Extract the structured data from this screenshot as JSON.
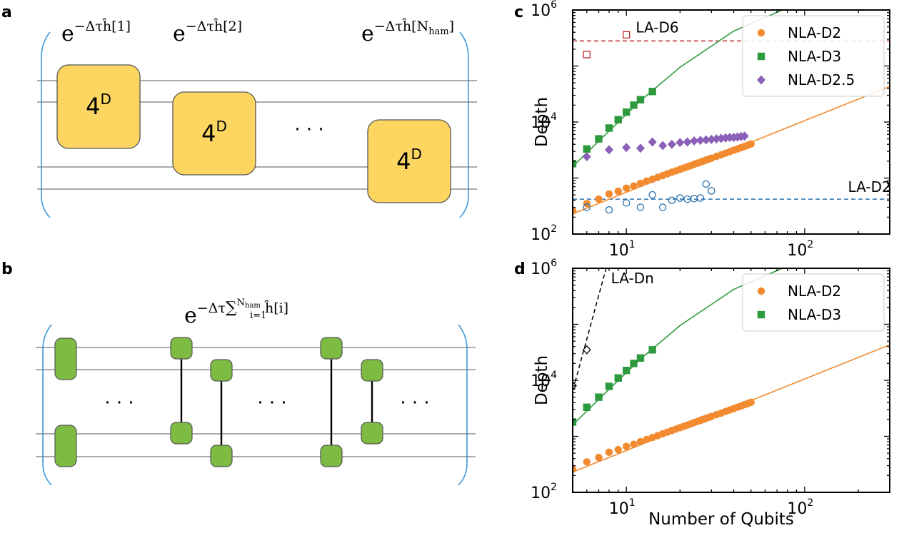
{
  "panels": {
    "a": {
      "letter": "a",
      "labels": [
        {
          "base": "e",
          "exp": "−Δτĥ[1]"
        },
        {
          "base": "e",
          "exp": "−Δτĥ[2]"
        },
        {
          "base": "e",
          "exp": "−Δτĥ[N",
          "sub": "ham",
          "close": "]"
        }
      ],
      "gate_label": "4",
      "gate_sup": "D",
      "ellipsis": "· · ·",
      "colors": {
        "gate_fill": "#fdd662",
        "gate_stroke": "#555555",
        "bracket": "#3a9ad9",
        "wire": "#777777"
      }
    },
    "b": {
      "letter": "b",
      "label": {
        "base": "e",
        "exp": "−Δτ",
        "sum": "∑",
        "sum_top": "N",
        "sum_top_sub": "ham",
        "sum_bot": "i=1",
        "term": "ĥ[i]"
      },
      "ellipsis": "· · ·",
      "colors": {
        "gate_fill": "#7dbb42",
        "gate_stroke": "#555555",
        "bracket": "#3a9ad9",
        "wire": "#777777"
      }
    },
    "c": {
      "letter": "c"
    },
    "d": {
      "letter": "d"
    }
  },
  "chart_data": [
    {
      "type": "scatter",
      "panel": "c",
      "xscale": "log",
      "yscale": "log",
      "xlim": [
        5,
        300
      ],
      "ylim": [
        100,
        1000000
      ],
      "ylabel": "Depth",
      "xlabel": "",
      "xtick_labels": [
        {
          "base": "10",
          "exp": "1",
          "value": 10
        },
        {
          "base": "10",
          "exp": "2",
          "value": 100
        }
      ],
      "ytick_labels": [
        {
          "base": "10",
          "exp": "2",
          "value": 100
        },
        {
          "base": "10",
          "exp": "4",
          "value": 10000
        },
        {
          "base": "10",
          "exp": "6",
          "value": 1000000
        }
      ],
      "legend_position": "top-right",
      "series": [
        {
          "name": "NLA-D2",
          "marker": "circle",
          "color": "#f28a30",
          "x": [
            5,
            6,
            7,
            8,
            9,
            10,
            11,
            12,
            13,
            14,
            15,
            16,
            17,
            18,
            19,
            20,
            21,
            22,
            23,
            24,
            25,
            26,
            27,
            28,
            29,
            30,
            32,
            34,
            36,
            38,
            40,
            42,
            44,
            46,
            48,
            50
          ],
          "y": [
            260,
            350,
            420,
            520,
            580,
            660,
            720,
            800,
            880,
            950,
            1030,
            1110,
            1190,
            1270,
            1350,
            1430,
            1510,
            1590,
            1670,
            1760,
            1840,
            1920,
            2010,
            2090,
            2180,
            2260,
            2430,
            2600,
            2780,
            2950,
            3130,
            3310,
            3490,
            3670,
            3850,
            4050
          ],
          "fit": {
            "x": [
              5,
              300
            ],
            "y": [
              230,
              43000
            ]
          }
        },
        {
          "name": "NLA-D3",
          "marker": "square",
          "color": "#2e9a3e",
          "x": [
            5,
            6,
            7,
            8,
            9,
            10,
            11,
            12,
            14
          ],
          "y": [
            1800,
            3300,
            5000,
            7800,
            11000,
            15000,
            20000,
            25000,
            35000
          ],
          "fit": {
            "x": [
              5,
              8,
              12,
              20,
              40,
              75
            ],
            "y": [
              1600,
              6900,
              24000,
              95000,
              420000,
              1000000
            ]
          }
        },
        {
          "name": "NLA-D2.5",
          "marker": "diamond",
          "color": "#8a60b8",
          "x": [
            6,
            8,
            10,
            12,
            14,
            16,
            18,
            20,
            22,
            24,
            26,
            28,
            30,
            32,
            34,
            36,
            38,
            40,
            42,
            44,
            46
          ],
          "y": [
            2400,
            3200,
            3500,
            3400,
            4400,
            3800,
            4000,
            4300,
            4400,
            4600,
            4700,
            4800,
            4900,
            5000,
            5100,
            5200,
            5300,
            5300,
            5400,
            5500,
            5600
          ]
        },
        {
          "name": "",
          "marker": "open-circle",
          "color": "#2b72b0",
          "x": [
            6,
            8,
            10,
            12,
            14,
            16,
            18,
            20,
            22,
            24,
            26,
            28,
            30
          ],
          "y": [
            300,
            270,
            360,
            300,
            500,
            300,
            400,
            440,
            420,
            430,
            440,
            780,
            590
          ]
        },
        {
          "name": "",
          "marker": "open-square",
          "color": "#c0282f",
          "x": [
            6,
            10
          ],
          "y": [
            160000,
            360000
          ]
        }
      ],
      "reference_lines": [
        {
          "label": "LA-D6",
          "y": 280000,
          "color": "#c0282f",
          "style": "dashed"
        },
        {
          "label": "LA-D2",
          "y": 420,
          "color": "#2b72b0",
          "style": "dashed"
        }
      ]
    },
    {
      "type": "scatter",
      "panel": "d",
      "xscale": "log",
      "yscale": "log",
      "xlim": [
        5,
        300
      ],
      "ylim": [
        100,
        1000000
      ],
      "ylabel": "Depth",
      "xlabel": "Number of Qubits",
      "xtick_labels": [
        {
          "base": "10",
          "exp": "1",
          "value": 10
        },
        {
          "base": "10",
          "exp": "2",
          "value": 100
        }
      ],
      "ytick_labels": [
        {
          "base": "10",
          "exp": "2",
          "value": 100
        },
        {
          "base": "10",
          "exp": "4",
          "value": 10000
        },
        {
          "base": "10",
          "exp": "6",
          "value": 1000000
        }
      ],
      "legend_position": "top-right",
      "series": [
        {
          "name": "NLA-D2",
          "marker": "circle",
          "color": "#f28a30",
          "x": [
            5,
            6,
            7,
            8,
            9,
            10,
            11,
            12,
            13,
            14,
            15,
            16,
            17,
            18,
            19,
            20,
            21,
            22,
            23,
            24,
            25,
            26,
            27,
            28,
            29,
            30,
            32,
            34,
            36,
            38,
            40,
            42,
            44,
            46,
            48,
            50
          ],
          "y": [
            260,
            350,
            420,
            520,
            580,
            660,
            720,
            800,
            880,
            950,
            1030,
            1110,
            1190,
            1270,
            1350,
            1430,
            1510,
            1590,
            1670,
            1760,
            1840,
            1920,
            2010,
            2090,
            2180,
            2260,
            2430,
            2600,
            2780,
            2950,
            3130,
            3310,
            3490,
            3670,
            3850,
            4050
          ],
          "fit": {
            "x": [
              5,
              300
            ],
            "y": [
              230,
              43000
            ]
          }
        },
        {
          "name": "NLA-D3",
          "marker": "square",
          "color": "#2e9a3e",
          "x": [
            5,
            6,
            7,
            8,
            9,
            10,
            11,
            12,
            14
          ],
          "y": [
            1800,
            3300,
            5000,
            7800,
            11000,
            15000,
            20000,
            25000,
            35000
          ],
          "fit": {
            "x": [
              5,
              8,
              12,
              20,
              40,
              75
            ],
            "y": [
              1600,
              6900,
              24000,
              95000,
              420000,
              1000000
            ]
          }
        },
        {
          "name": "",
          "marker": "open-diamond",
          "color": "#000000",
          "x": [
            5,
            6
          ],
          "y": [
            8000,
            35000
          ]
        }
      ],
      "reference_lines": [
        {
          "label": "LA-Dn",
          "color": "#000000",
          "style": "dashed",
          "x": [
            4.8,
            7.7
          ],
          "y": [
            4000,
            1000000
          ]
        }
      ]
    }
  ]
}
